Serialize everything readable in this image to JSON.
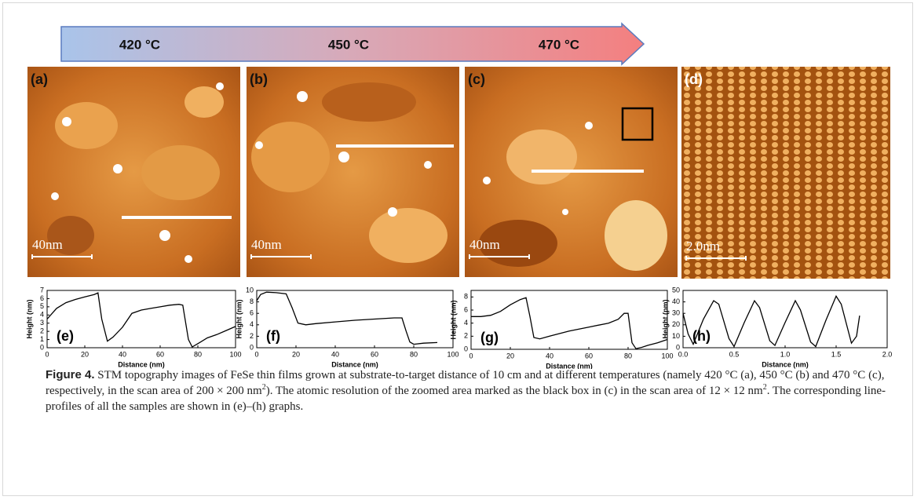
{
  "arrow": {
    "labels": [
      "420 °C",
      "450 °C",
      "470 °C"
    ]
  },
  "images": [
    {
      "label": "(a)",
      "scale": "40nm"
    },
    {
      "label": "(b)",
      "scale": "40nm"
    },
    {
      "label": "(c)",
      "scale": "40nm"
    },
    {
      "label": "(d)",
      "scale": "2.0nm"
    }
  ],
  "chart_data": [
    {
      "type": "line",
      "label": "(e)",
      "x_label": "Distance (nm)",
      "y_label": "Height (nm)",
      "color": "#000000",
      "xlim": [
        0,
        100
      ],
      "xticks": [
        0,
        20,
        40,
        60,
        80,
        100
      ],
      "ylim": [
        0,
        7
      ],
      "yticks": [
        0,
        1,
        2,
        3,
        4,
        5,
        6,
        7
      ],
      "x": [
        0,
        5,
        10,
        15,
        20,
        25,
        27,
        29,
        32,
        35,
        40,
        45,
        50,
        55,
        60,
        65,
        70,
        72,
        75,
        77,
        80,
        85,
        90,
        95,
        100
      ],
      "values": [
        3.5,
        4.8,
        5.5,
        5.9,
        6.2,
        6.5,
        6.7,
        3.5,
        0.8,
        1.3,
        2.5,
        4.2,
        4.6,
        4.8,
        5.0,
        5.2,
        5.3,
        5.2,
        1.0,
        0.1,
        0.5,
        1.2,
        1.6,
        2.1,
        2.6
      ]
    },
    {
      "type": "line",
      "label": "(f)",
      "x_label": "Distance (nm)",
      "y_label": "Height (nm)",
      "color": "#000000",
      "xlim": [
        0,
        100
      ],
      "xticks": [
        0,
        20,
        40,
        60,
        80,
        100
      ],
      "ylim": [
        0,
        10
      ],
      "yticks": [
        0,
        2,
        4,
        6,
        8,
        10
      ],
      "x": [
        0,
        2,
        5,
        10,
        15,
        18,
        21,
        25,
        30,
        40,
        50,
        60,
        70,
        74,
        76,
        78,
        80,
        85,
        92
      ],
      "values": [
        8.2,
        9.3,
        9.7,
        9.6,
        9.4,
        7.0,
        4.3,
        4.0,
        4.2,
        4.5,
        4.8,
        5.0,
        5.2,
        5.2,
        3.0,
        1.0,
        0.6,
        0.8,
        0.9
      ]
    },
    {
      "type": "line",
      "label": "(g)",
      "x_label": "Distance (nm)",
      "y_label": "Height (nm)",
      "color": "#000000",
      "xlim": [
        0,
        100
      ],
      "xticks": [
        0,
        20,
        40,
        60,
        80,
        100
      ],
      "ylim": [
        0,
        9
      ],
      "yticks": [
        0,
        2,
        4,
        6,
        8
      ],
      "x": [
        0,
        5,
        10,
        15,
        20,
        25,
        28,
        30,
        32,
        35,
        40,
        50,
        60,
        70,
        75,
        78,
        80,
        82,
        84,
        87,
        90,
        95,
        100
      ],
      "values": [
        5.0,
        5.0,
        5.2,
        5.8,
        6.8,
        7.6,
        7.9,
        5.0,
        1.8,
        1.6,
        2.0,
        2.8,
        3.4,
        4.0,
        4.6,
        5.5,
        5.5,
        1.0,
        0.1,
        0.3,
        0.6,
        1.0,
        1.5
      ]
    },
    {
      "type": "line",
      "label": "(h)",
      "x_label": "Distance (nm)",
      "y_label": "Height (pm)",
      "color": "#000000",
      "xlim": [
        0,
        2
      ],
      "xticks": [
        {
          "value": 0,
          "label": "0.0"
        },
        0.5,
        {
          "value": 1,
          "label": "1.0"
        },
        1.5,
        {
          "value": 2,
          "label": "2.0"
        }
      ],
      "ylim": [
        0,
        50
      ],
      "yticks": [
        0,
        10,
        20,
        30,
        40,
        50
      ],
      "x": [
        0,
        0.05,
        0.1,
        0.2,
        0.3,
        0.35,
        0.45,
        0.5,
        0.6,
        0.7,
        0.75,
        0.85,
        0.9,
        1.0,
        1.1,
        1.15,
        1.25,
        1.3,
        1.4,
        1.5,
        1.55,
        1.65,
        1.7,
        1.73
      ],
      "values": [
        30,
        12,
        3,
        25,
        41,
        38,
        8,
        1,
        22,
        41,
        35,
        6,
        2,
        22,
        41,
        33,
        5,
        1,
        24,
        45,
        38,
        4,
        10,
        28
      ]
    }
  ],
  "caption": {
    "label": "Figure 4.",
    "text1": " STM topography images of FeSe thin films grown at substrate-to-target distance of 10 cm and at different temperatures (namely 420 °C (a), 450 °C (b) and 470 °C (c), respectively, in the scan area of 200 × 200 nm",
    "sup1": "2",
    "text2": "). The atomic resolution of the zoomed area marked as the black box in (c) in the scan area of 12 × 12 nm",
    "sup2": "2",
    "text3": ". The corresponding line-profiles of all the samples are shown in (e)–(h) graphs."
  }
}
